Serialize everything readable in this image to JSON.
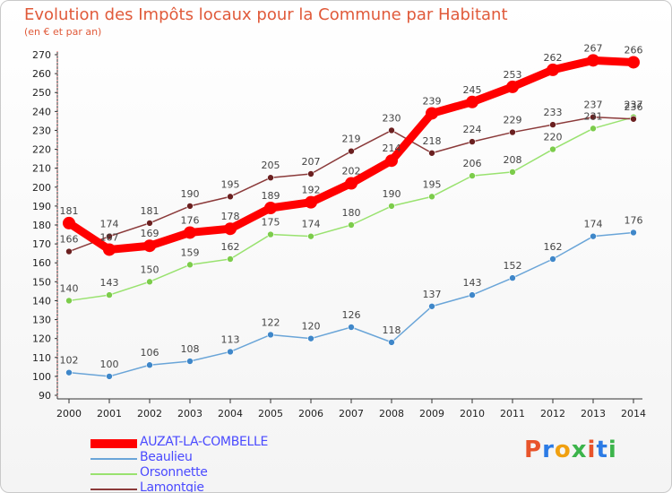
{
  "title": "Evolution des Impôts locaux pour la Commune par Habitant",
  "subtitle": "(en € et par an)",
  "logo": {
    "text": "Proxiti",
    "letters": [
      "P",
      "r",
      "o",
      "x",
      "i",
      "t",
      "i"
    ],
    "colors": [
      "#e8542b",
      "#2c7be5",
      "#f0a010",
      "#3cb44b",
      "#e8542b",
      "#2c7be5",
      "#3cb44b"
    ]
  },
  "chart_data": {
    "type": "line",
    "title": "Evolution des Impôts locaux pour la Commune par Habitant",
    "subtitle": "(en € et par an)",
    "xlabel": "",
    "ylabel": "",
    "ylim": [
      90,
      270
    ],
    "yticks": [
      90,
      100,
      110,
      120,
      130,
      140,
      150,
      160,
      170,
      180,
      190,
      200,
      210,
      220,
      230,
      240,
      250,
      260,
      270
    ],
    "grid": false,
    "legend": "bottom-left",
    "x": [
      "2000",
      "2001",
      "2002",
      "2003",
      "2004",
      "2005",
      "2006",
      "2007",
      "2008",
      "2009",
      "2010",
      "2011",
      "2012",
      "2013",
      "2014"
    ],
    "series": [
      {
        "name": "AUZAT-LA-COMBELLE",
        "color": "#ff0000",
        "values": [
          181,
          167,
          169,
          176,
          178,
          189,
          192,
          202,
          214,
          239,
          245,
          253,
          262,
          267,
          266
        ]
      },
      {
        "name": "Beaulieu",
        "color": "#6aa5d8",
        "point_color": "#3f87c9",
        "values": [
          102,
          100,
          106,
          108,
          113,
          122,
          120,
          126,
          118,
          137,
          143,
          152,
          162,
          174,
          176
        ]
      },
      {
        "name": "Orsonnette",
        "color": "#99e26f",
        "point_color": "#7ccc4b",
        "values": [
          140,
          143,
          150,
          159,
          162,
          175,
          174,
          180,
          190,
          195,
          206,
          208,
          220,
          231,
          237
        ]
      },
      {
        "name": "Lamontgie",
        "color": "#8b3a3a",
        "point_color": "#6b2020",
        "values": [
          166,
          174,
          181,
          190,
          195,
          205,
          207,
          219,
          230,
          218,
          224,
          229,
          233,
          237,
          236
        ]
      }
    ]
  }
}
